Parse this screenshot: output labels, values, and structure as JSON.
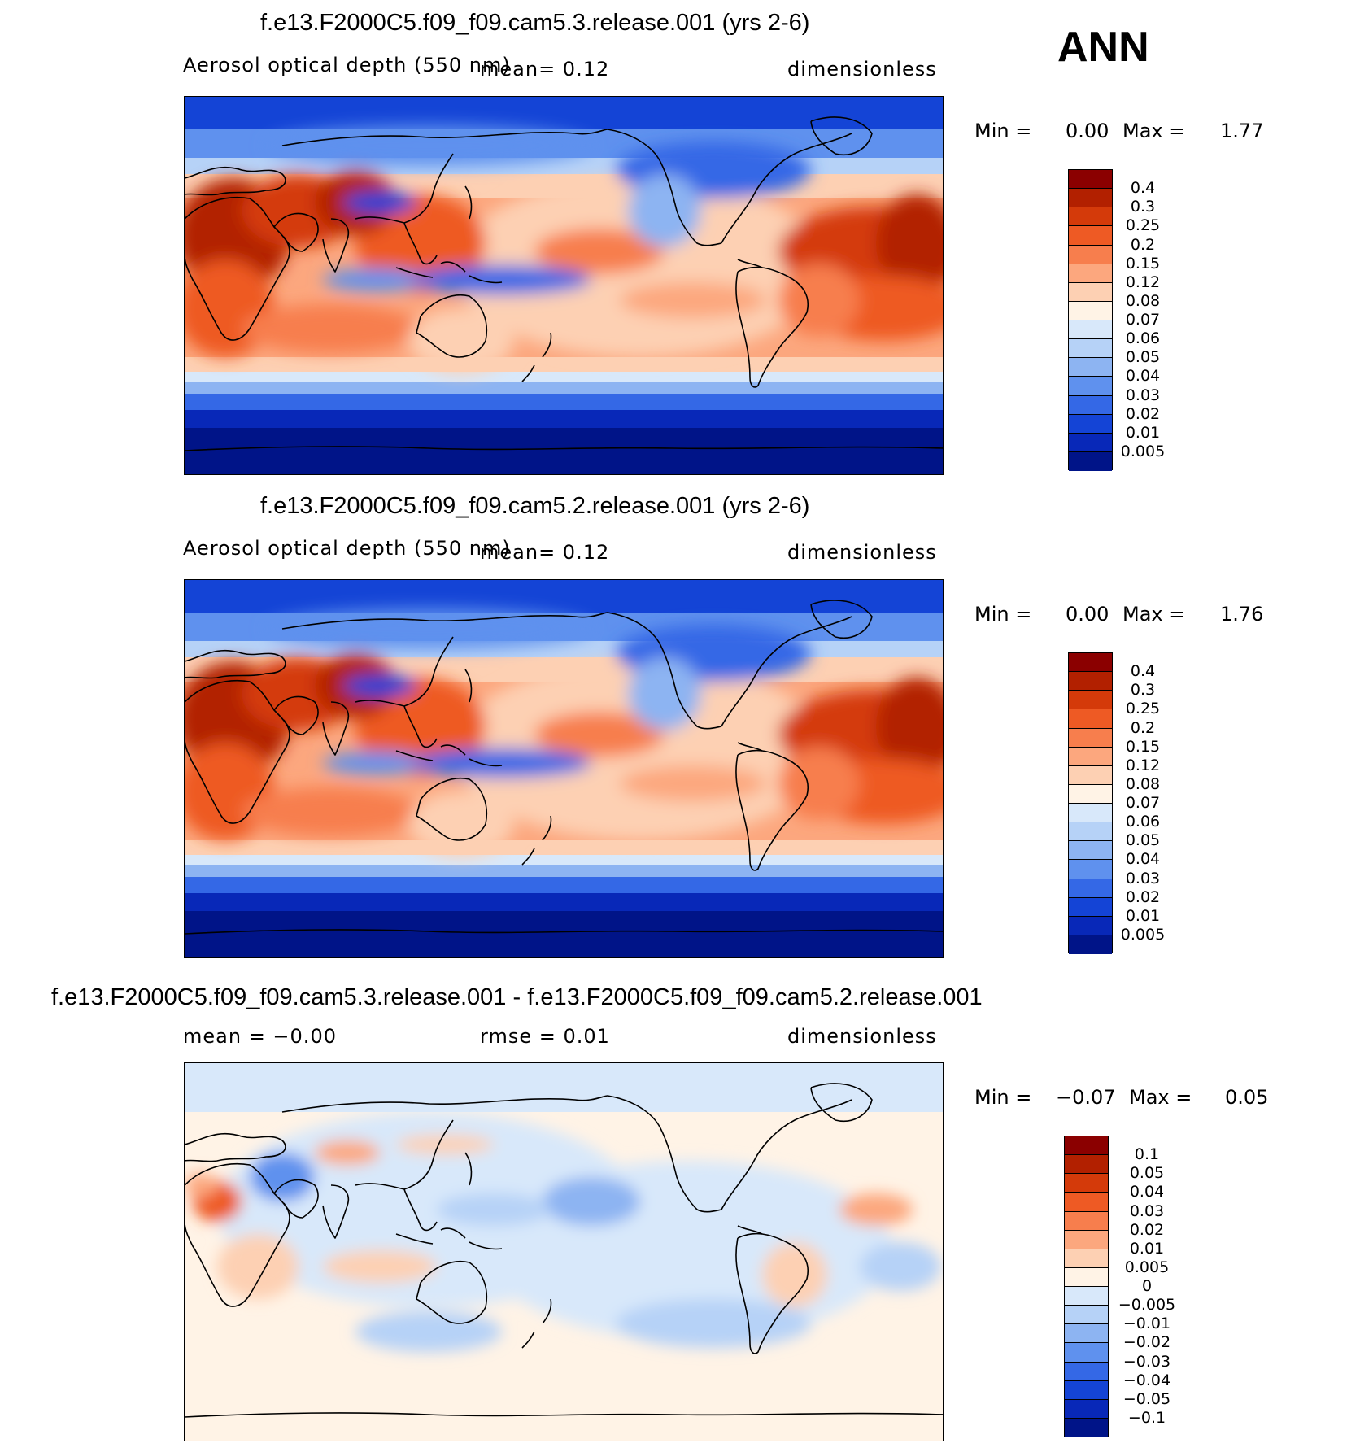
{
  "season_label": "ANN",
  "panels": [
    {
      "title": "f.e13.F2000C5.f09_f09.cam5.3.release.001 (yrs 2-6)",
      "left_label": "Aerosol optical depth (550 nm)",
      "center_label": "mean=    0.12",
      "right_label": "dimensionless",
      "min_label": "Min =",
      "min_value": "0.00",
      "max_label": "Max =",
      "max_value": "1.77",
      "colorbar_labels": [
        "0.4",
        "0.3",
        "0.25",
        "0.2",
        "0.15",
        "0.12",
        "0.08",
        "0.07",
        "0.06",
        "0.05",
        "0.04",
        "0.03",
        "0.02",
        "0.01",
        "0.005"
      ]
    },
    {
      "title": "f.e13.F2000C5.f09_f09.cam5.2.release.001 (yrs 2-6)",
      "left_label": "Aerosol optical depth (550 nm)",
      "center_label": "mean=    0.12",
      "right_label": "dimensionless",
      "min_label": "Min =",
      "min_value": "0.00",
      "max_label": "Max =",
      "max_value": "1.76",
      "colorbar_labels": [
        "0.4",
        "0.3",
        "0.25",
        "0.2",
        "0.15",
        "0.12",
        "0.08",
        "0.07",
        "0.06",
        "0.05",
        "0.04",
        "0.03",
        "0.02",
        "0.01",
        "0.005"
      ]
    },
    {
      "title": "f.e13.F2000C5.f09_f09.cam5.3.release.001 - f.e13.F2000C5.f09_f09.cam5.2.release.001",
      "left_label": "mean =   −0.00",
      "center_label": "rmse =    0.01",
      "right_label": "dimensionless",
      "min_label": "Min =",
      "min_value": "−0.07",
      "max_label": "Max =",
      "max_value": "0.05",
      "colorbar_labels": [
        "0.1",
        "0.05",
        "0.04",
        "0.03",
        "0.02",
        "0.01",
        "0.005",
        "0",
        "−0.005",
        "−0.01",
        "−0.02",
        "−0.03",
        "−0.04",
        "−0.05",
        "−0.1"
      ]
    }
  ],
  "colors": {
    "aod_scale": [
      "#8b0000",
      "#b22000",
      "#d43a0a",
      "#ee5a24",
      "#f77e4d",
      "#fca77e",
      "#fdd0b3",
      "#fff3e6",
      "#d8e8fa",
      "#b6d2f7",
      "#8db4f2",
      "#5f91ee",
      "#3468e6",
      "#1444d6",
      "#0828b8",
      "#001488"
    ],
    "diff_scale": [
      "#8b0000",
      "#b22000",
      "#d43a0a",
      "#ee5a24",
      "#f77e4d",
      "#fca77e",
      "#fdd0b3",
      "#fff3e6",
      "#d8e8fa",
      "#b6d2f7",
      "#8db4f2",
      "#5f91ee",
      "#3468e6",
      "#1444d6",
      "#0828b8",
      "#001488"
    ]
  }
}
